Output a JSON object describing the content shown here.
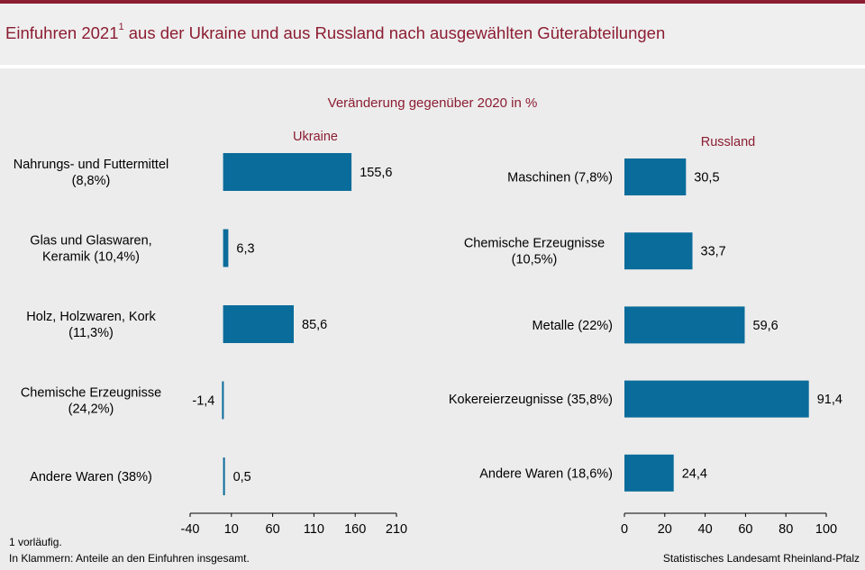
{
  "header": {
    "title_main": "Einfuhren 2021",
    "title_sup": "1",
    "title_rest": " aus der Ukraine und aus Russland nach ausgewählten Güterabteilungen"
  },
  "subtitle": "Veränderung gegenüber 2020 in %",
  "colors": {
    "bar": "#0a6c9a",
    "accent": "#8c1d32",
    "background": "#ececec"
  },
  "chart_data": [
    {
      "type": "bar",
      "orientation": "horizontal",
      "title": "Ukraine",
      "categories": [
        [
          "Nahrungs- und Futtermittel",
          "(8,8%)"
        ],
        [
          "Glas und Glaswaren,",
          "Keramik (10,4%)"
        ],
        [
          "Holz, Holzwaren, Kork",
          "(11,3%)"
        ],
        [
          "Chemische Erzeugnisse",
          "(24,2%)"
        ],
        [
          "Andere Waren (38%)"
        ]
      ],
      "values": [
        155.6,
        6.3,
        85.6,
        -1.4,
        0.5
      ],
      "value_labels": [
        "155,6",
        "6,3",
        "85,6",
        "-1,4",
        "0,5"
      ],
      "xlim": [
        -40,
        210
      ],
      "ticks": [
        -40,
        10,
        60,
        110,
        160,
        210
      ],
      "grid": false
    },
    {
      "type": "bar",
      "orientation": "horizontal",
      "title": "Russland",
      "categories": [
        [
          "Maschinen (7,8%)"
        ],
        [
          "Chemische Erzeugnisse",
          "(10,5%)"
        ],
        [
          "Metalle (22%)"
        ],
        [
          "Kokereierzeugnisse (35,8%)"
        ],
        [
          "Andere Waren (18,6%)"
        ]
      ],
      "values": [
        30.5,
        33.7,
        59.6,
        91.4,
        24.4
      ],
      "value_labels": [
        "30,5",
        "33,7",
        "59,6",
        "91,4",
        "24,4"
      ],
      "xlim": [
        0,
        100
      ],
      "ticks": [
        0,
        20,
        40,
        60,
        80,
        100
      ],
      "grid": false
    }
  ],
  "footnotes": {
    "note1": "1 vorläufig.",
    "note2": "In Klammern: Anteile an den Einfuhren insgesamt.",
    "source": "Statistisches Landesamt Rheinland-Pfalz"
  }
}
